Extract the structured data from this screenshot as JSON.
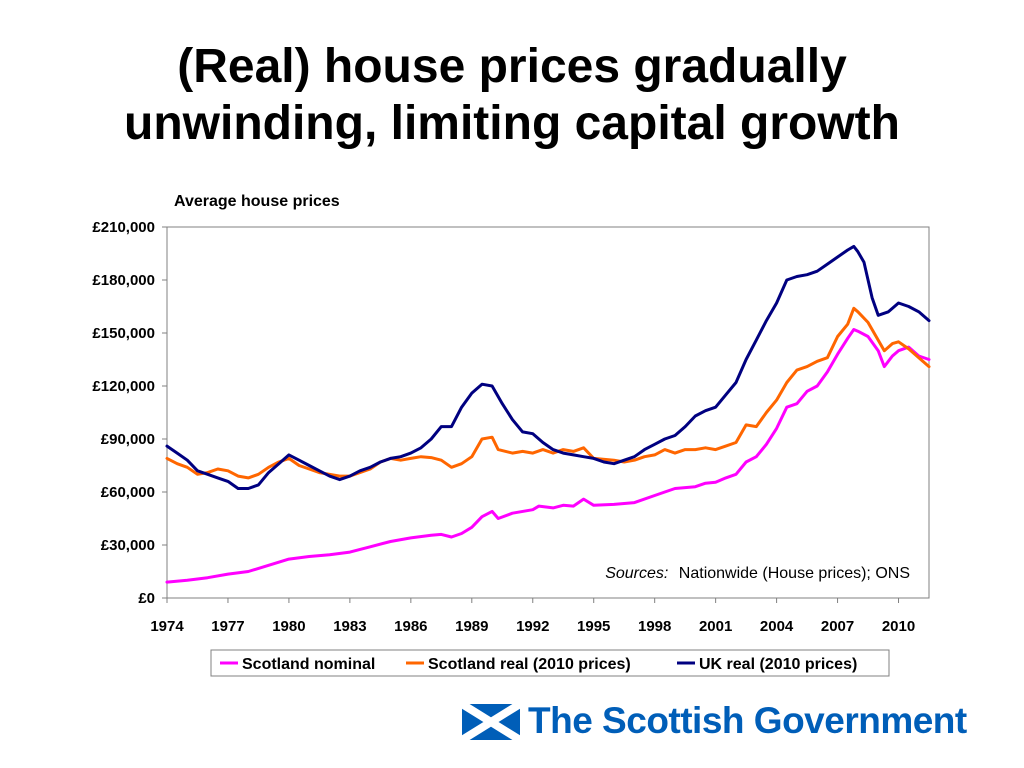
{
  "slide": {
    "title_line1": "(Real) house prices gradually",
    "title_line2": "unwinding, limiting capital growth"
  },
  "chart_data": {
    "type": "line",
    "title": "Average house prices",
    "ylim": [
      0,
      210000
    ],
    "y_ticks": [
      0,
      30000,
      60000,
      90000,
      120000,
      150000,
      180000,
      210000
    ],
    "y_tick_labels": [
      "£0",
      "£30,000",
      "£60,000",
      "£90,000",
      "£120,000",
      "£150,000",
      "£180,000",
      "£210,000"
    ],
    "xlim": [
      1974,
      2011.5
    ],
    "x_ticks": [
      1974,
      1977,
      1980,
      1983,
      1986,
      1989,
      1992,
      1995,
      1998,
      2001,
      2004,
      2007,
      2010
    ],
    "x_tick_labels": [
      "1974",
      "1977",
      "1980",
      "1983",
      "1986",
      "1989",
      "1992",
      "1995",
      "1998",
      "2001",
      "2004",
      "2007",
      "2010"
    ],
    "grid": false,
    "legend_position": "bottom",
    "annotation": {
      "label": "Sources:",
      "text": "Nationwide (House prices); ONS"
    },
    "series": [
      {
        "name": "Scotland nominal",
        "color": "#ff00ff",
        "points": [
          [
            1974,
            9000
          ],
          [
            1975,
            10000
          ],
          [
            1976,
            11500
          ],
          [
            1977,
            13500
          ],
          [
            1978,
            15000
          ],
          [
            1979,
            18500
          ],
          [
            1980,
            22000
          ],
          [
            1981,
            23500
          ],
          [
            1982,
            24500
          ],
          [
            1983,
            26000
          ],
          [
            1984,
            29000
          ],
          [
            1985,
            32000
          ],
          [
            1986,
            34000
          ],
          [
            1987,
            35500
          ],
          [
            1987.5,
            36000
          ],
          [
            1988,
            34500
          ],
          [
            1988.5,
            36500
          ],
          [
            1989,
            40000
          ],
          [
            1989.5,
            46000
          ],
          [
            1990,
            49000
          ],
          [
            1990.3,
            45000
          ],
          [
            1991,
            48000
          ],
          [
            1992,
            50000
          ],
          [
            1992.3,
            52000
          ],
          [
            1993,
            51000
          ],
          [
            1993.5,
            52500
          ],
          [
            1994,
            52000
          ],
          [
            1994.5,
            56000
          ],
          [
            1995,
            52500
          ],
          [
            1996,
            53000
          ],
          [
            1997,
            54000
          ],
          [
            1998,
            58000
          ],
          [
            1998.5,
            60000
          ],
          [
            1999,
            62000
          ],
          [
            2000,
            63000
          ],
          [
            2000.5,
            65000
          ],
          [
            2001,
            65500
          ],
          [
            2001.5,
            68000
          ],
          [
            2002,
            70000
          ],
          [
            2002.5,
            77000
          ],
          [
            2003,
            80000
          ],
          [
            2003.5,
            87000
          ],
          [
            2004,
            96000
          ],
          [
            2004.5,
            108000
          ],
          [
            2005,
            110000
          ],
          [
            2005.5,
            117000
          ],
          [
            2006,
            120000
          ],
          [
            2006.5,
            128000
          ],
          [
            2007,
            138000
          ],
          [
            2007.5,
            147000
          ],
          [
            2007.8,
            152000
          ],
          [
            2008,
            151000
          ],
          [
            2008.5,
            148000
          ],
          [
            2009,
            140000
          ],
          [
            2009.3,
            131000
          ],
          [
            2009.7,
            137000
          ],
          [
            2010,
            140000
          ],
          [
            2010.5,
            142000
          ],
          [
            2011,
            137000
          ],
          [
            2011.5,
            135000
          ]
        ]
      },
      {
        "name": "Scotland real (2010 prices)",
        "color": "#ff6600",
        "points": [
          [
            1974,
            79000
          ],
          [
            1974.5,
            76000
          ],
          [
            1975,
            74000
          ],
          [
            1975.5,
            70000
          ],
          [
            1976,
            71000
          ],
          [
            1976.5,
            73000
          ],
          [
            1977,
            72000
          ],
          [
            1977.5,
            69000
          ],
          [
            1978,
            68000
          ],
          [
            1978.5,
            70000
          ],
          [
            1979,
            74000
          ],
          [
            1979.5,
            77000
          ],
          [
            1980,
            79000
          ],
          [
            1980.5,
            75000
          ],
          [
            1981,
            73000
          ],
          [
            1981.5,
            71000
          ],
          [
            1982,
            70000
          ],
          [
            1982.5,
            69000
          ],
          [
            1983,
            69000
          ],
          [
            1984,
            73000
          ],
          [
            1984.5,
            77000
          ],
          [
            1985,
            79000
          ],
          [
            1985.5,
            78000
          ],
          [
            1986,
            79000
          ],
          [
            1986.5,
            80000
          ],
          [
            1987,
            79500
          ],
          [
            1987.5,
            78000
          ],
          [
            1988,
            74000
          ],
          [
            1988.5,
            76000
          ],
          [
            1989,
            80000
          ],
          [
            1989.5,
            90000
          ],
          [
            1990,
            91000
          ],
          [
            1990.3,
            84000
          ],
          [
            1991,
            82000
          ],
          [
            1991.5,
            83000
          ],
          [
            1992,
            82000
          ],
          [
            1992.5,
            84000
          ],
          [
            1993,
            82000
          ],
          [
            1993.5,
            84000
          ],
          [
            1994,
            83000
          ],
          [
            1994.5,
            85000
          ],
          [
            1995,
            79000
          ],
          [
            1996,
            78000
          ],
          [
            1996.5,
            77000
          ],
          [
            1997,
            78000
          ],
          [
            1997.5,
            80000
          ],
          [
            1998,
            81000
          ],
          [
            1998.5,
            84000
          ],
          [
            1999,
            82000
          ],
          [
            1999.5,
            84000
          ],
          [
            2000,
            84000
          ],
          [
            2000.5,
            85000
          ],
          [
            2001,
            84000
          ],
          [
            2001.5,
            86000
          ],
          [
            2002,
            88000
          ],
          [
            2002.5,
            98000
          ],
          [
            2003,
            97000
          ],
          [
            2003.5,
            105000
          ],
          [
            2004,
            112000
          ],
          [
            2004.5,
            122000
          ],
          [
            2005,
            129000
          ],
          [
            2005.5,
            131000
          ],
          [
            2006,
            134000
          ],
          [
            2006.5,
            136000
          ],
          [
            2007,
            148000
          ],
          [
            2007.5,
            155000
          ],
          [
            2007.8,
            164000
          ],
          [
            2008,
            162000
          ],
          [
            2008.5,
            156000
          ],
          [
            2009,
            146000
          ],
          [
            2009.3,
            140000
          ],
          [
            2009.7,
            144000
          ],
          [
            2010,
            145000
          ],
          [
            2010.5,
            141000
          ],
          [
            2011,
            136000
          ],
          [
            2011.5,
            131000
          ]
        ]
      },
      {
        "name": "UK real (2010 prices)",
        "color": "#000080",
        "points": [
          [
            1974,
            86000
          ],
          [
            1974.5,
            82000
          ],
          [
            1975,
            78000
          ],
          [
            1975.5,
            72000
          ],
          [
            1976,
            70000
          ],
          [
            1976.5,
            68000
          ],
          [
            1977,
            66000
          ],
          [
            1977.5,
            62000
          ],
          [
            1978,
            62000
          ],
          [
            1978.5,
            64000
          ],
          [
            1979,
            71000
          ],
          [
            1979.5,
            76000
          ],
          [
            1980,
            81000
          ],
          [
            1980.5,
            78000
          ],
          [
            1981,
            75000
          ],
          [
            1981.5,
            72000
          ],
          [
            1982,
            69000
          ],
          [
            1982.5,
            67000
          ],
          [
            1983,
            69000
          ],
          [
            1983.5,
            72000
          ],
          [
            1984,
            74000
          ],
          [
            1984.5,
            77000
          ],
          [
            1985,
            79000
          ],
          [
            1985.5,
            80000
          ],
          [
            1986,
            82000
          ],
          [
            1986.5,
            85000
          ],
          [
            1987,
            90000
          ],
          [
            1987.5,
            97000
          ],
          [
            1988,
            97000
          ],
          [
            1988.5,
            108000
          ],
          [
            1989,
            116000
          ],
          [
            1989.5,
            121000
          ],
          [
            1990,
            120000
          ],
          [
            1990.5,
            110000
          ],
          [
            1991,
            101000
          ],
          [
            1991.5,
            94000
          ],
          [
            1992,
            93000
          ],
          [
            1992.5,
            88000
          ],
          [
            1993,
            84000
          ],
          [
            1993.5,
            82000
          ],
          [
            1994,
            81000
          ],
          [
            1994.5,
            80000
          ],
          [
            1995,
            79000
          ],
          [
            1995.5,
            77000
          ],
          [
            1996,
            76000
          ],
          [
            1996.5,
            78000
          ],
          [
            1997,
            80000
          ],
          [
            1997.5,
            84000
          ],
          [
            1998,
            87000
          ],
          [
            1998.5,
            90000
          ],
          [
            1999,
            92000
          ],
          [
            1999.5,
            97000
          ],
          [
            2000,
            103000
          ],
          [
            2000.5,
            106000
          ],
          [
            2001,
            108000
          ],
          [
            2001.5,
            115000
          ],
          [
            2002,
            122000
          ],
          [
            2002.5,
            135000
          ],
          [
            2003,
            146000
          ],
          [
            2003.5,
            157000
          ],
          [
            2004,
            167000
          ],
          [
            2004.5,
            180000
          ],
          [
            2005,
            182000
          ],
          [
            2005.5,
            183000
          ],
          [
            2006,
            185000
          ],
          [
            2006.5,
            189000
          ],
          [
            2007,
            193000
          ],
          [
            2007.5,
            197000
          ],
          [
            2007.8,
            199000
          ],
          [
            2008,
            196000
          ],
          [
            2008.3,
            190000
          ],
          [
            2008.7,
            170000
          ],
          [
            2009,
            160000
          ],
          [
            2009.5,
            162000
          ],
          [
            2010,
            167000
          ],
          [
            2010.5,
            165000
          ],
          [
            2011,
            162000
          ],
          [
            2011.5,
            157000
          ]
        ]
      }
    ]
  },
  "logo": {
    "text": "The Scottish Government",
    "flag_colors": {
      "field": "#005eb8",
      "saltire": "#ffffff"
    }
  }
}
